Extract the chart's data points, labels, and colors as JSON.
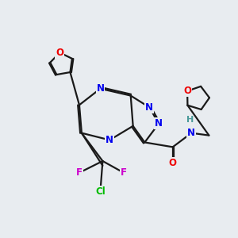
{
  "bg_color": "#e8ecf0",
  "bond_color": "#1a1a1a",
  "bond_width": 1.6,
  "atom_colors": {
    "N": "#0000ee",
    "O": "#ee0000",
    "F": "#cc00cc",
    "Cl": "#00bb00",
    "H": "#4a9a9a",
    "C": "#1a1a1a"
  },
  "font_size": 8.5,
  "fig_width": 3.0,
  "fig_height": 3.0,
  "dpi": 100
}
